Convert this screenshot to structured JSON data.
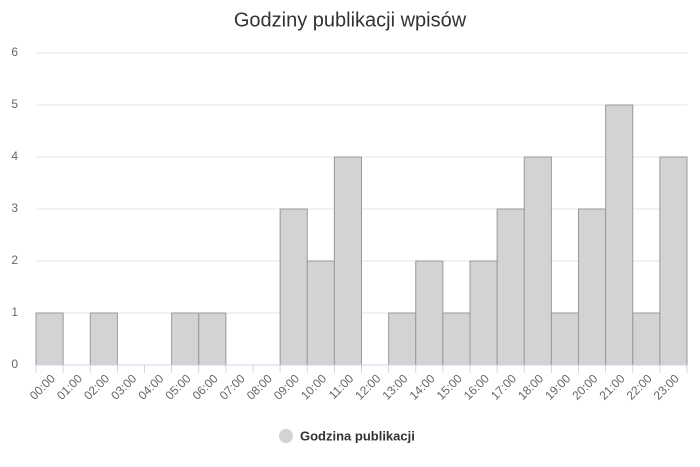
{
  "chart_data": {
    "type": "bar",
    "title": "Godziny publikacji wpisów",
    "categories": [
      "00:00",
      "01:00",
      "02:00",
      "03:00",
      "04:00",
      "05:00",
      "06:00",
      "07:00",
      "08:00",
      "09:00",
      "10:00",
      "11:00",
      "12:00",
      "13:00",
      "14:00",
      "15:00",
      "16:00",
      "17:00",
      "18:00",
      "19:00",
      "20:00",
      "21:00",
      "22:00",
      "23:00"
    ],
    "series": [
      {
        "name": "Godzina publikacji",
        "color": "#d3d3d3",
        "values": [
          1,
          0,
          1,
          0,
          0,
          1,
          1,
          0,
          0,
          3,
          2,
          4,
          0,
          1,
          2,
          1,
          2,
          3,
          4,
          1,
          3,
          5,
          1,
          4
        ]
      }
    ],
    "ylim": [
      0,
      6
    ],
    "yticks": [
      0,
      1,
      2,
      3,
      4,
      5,
      6
    ],
    "grid": true
  }
}
